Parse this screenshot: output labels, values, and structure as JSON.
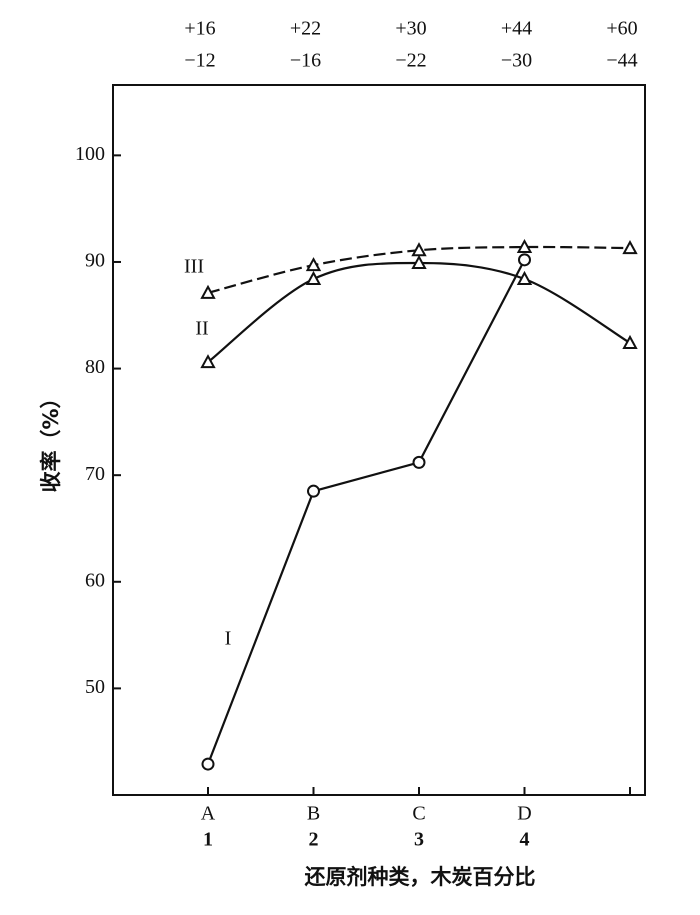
{
  "chart_data": {
    "type": "line",
    "y_label": "收率（%）",
    "x_label": "还原剂种类，木炭百分比",
    "categories": [
      "A",
      "B",
      "C",
      "D",
      null
    ],
    "categories_2": [
      "1",
      "2",
      "3",
      "4",
      null
    ],
    "top_labels": [
      {
        "plus": "+16",
        "minus": "−12"
      },
      {
        "plus": "+22",
        "minus": "−16"
      },
      {
        "plus": "+30",
        "minus": "−22"
      },
      {
        "plus": "+44",
        "minus": "−30"
      },
      {
        "plus": "+60",
        "minus": "−44"
      }
    ],
    "series": [
      {
        "name": "I",
        "color": "#111111",
        "marker": "circle",
        "dashed": false,
        "smooth": false,
        "values": [
          42.9,
          68.5,
          71.2,
          90.2,
          null
        ]
      },
      {
        "name": "II",
        "color": "#111111",
        "marker": "triangle",
        "dashed": false,
        "smooth": true,
        "values": [
          80.6,
          88.4,
          89.9,
          88.4,
          82.4
        ]
      },
      {
        "name": "III",
        "color": "#111111",
        "marker": "triangle",
        "dashed": true,
        "smooth": true,
        "values": [
          87.1,
          89.7,
          91.1,
          91.4,
          91.3
        ]
      }
    ],
    "ylim": [
      40,
      106.6
    ],
    "yticks": [
      50,
      60,
      70,
      80,
      90,
      100
    ]
  }
}
